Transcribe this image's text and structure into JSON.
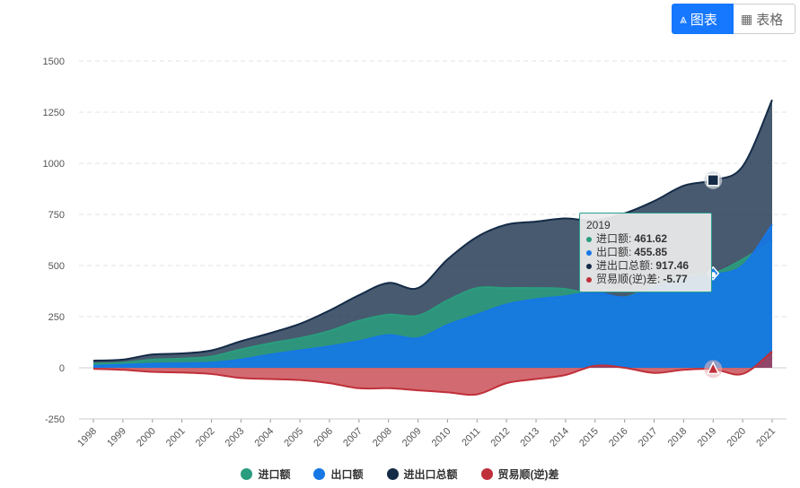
{
  "toolbar": {
    "chart_label": "图表",
    "table_label": "表格"
  },
  "colors": {
    "import": "#2a9d7e",
    "export": "#1677e5",
    "total": "#142b47",
    "balance": "#c0303a"
  },
  "chart_data": {
    "type": "area",
    "categories": [
      "1998",
      "1999",
      "2000",
      "2001",
      "2002",
      "2003",
      "2004",
      "2005",
      "2006",
      "2007",
      "2008",
      "2009",
      "2010",
      "2011",
      "2012",
      "2013",
      "2014",
      "2015",
      "2016",
      "2017",
      "2018",
      "2019",
      "2020",
      "2021"
    ],
    "ylim": [
      -250,
      1500
    ],
    "yticks": [
      "1500",
      "1250",
      "1000",
      "750",
      "500",
      "250",
      "0",
      "-250"
    ],
    "grid": true,
    "legend_position": "bottom",
    "series": [
      {
        "name": "进口额",
        "key": "import",
        "values": [
          20,
          25,
          40,
          45,
          55,
          90,
          120,
          145,
          180,
          230,
          260,
          255,
          330,
          390,
          390,
          390,
          385,
          355,
          345,
          400,
          450,
          461.62,
          530,
          620
        ]
      },
      {
        "name": "出口额",
        "key": "export",
        "values": [
          10,
          15,
          20,
          22,
          25,
          40,
          65,
          85,
          105,
          130,
          160,
          145,
          210,
          260,
          310,
          335,
          350,
          370,
          345,
          395,
          440,
          455.85,
          500,
          700
        ]
      },
      {
        "name": "进出口总额",
        "key": "total",
        "values": [
          35,
          40,
          65,
          70,
          85,
          130,
          170,
          215,
          280,
          355,
          415,
          390,
          530,
          640,
          700,
          715,
          730,
          720,
          755,
          815,
          890,
          917.46,
          985,
          1310
        ]
      },
      {
        "name": "贸易顺(逆)差",
        "key": "balance",
        "values": [
          -5,
          -10,
          -20,
          -23,
          -30,
          -50,
          -55,
          -60,
          -75,
          -100,
          -100,
          -110,
          -120,
          -130,
          -75,
          -55,
          -35,
          10,
          0,
          -25,
          -10,
          -5.77,
          -30,
          80
        ]
      }
    ]
  },
  "tooltip": {
    "year": "2019",
    "rows": [
      {
        "label": "进口额:",
        "value": "461.62",
        "color": "#2a9d7e"
      },
      {
        "label": "出口额:",
        "value": "455.85",
        "color": "#1677e5"
      },
      {
        "label": "进出口总额:",
        "value": "917.46",
        "color": "#142b47"
      },
      {
        "label": "贸易顺(逆)差:",
        "value": "-5.77",
        "color": "#c0303a"
      }
    ]
  }
}
